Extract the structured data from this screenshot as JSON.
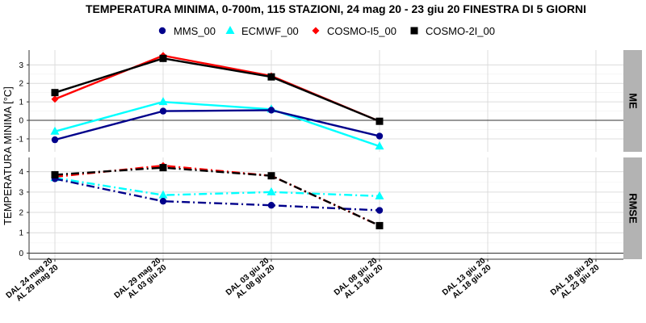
{
  "chart_data": {
    "type": "line",
    "title": "TEMPERATURA MINIMA, 0-700m, 115 STAZIONI, 24 mag 20 - 23 giu 20 FINESTRA DI 5 GIORNI",
    "ylabel": "TEMPERATURA MINIMA [°C]",
    "xlabel": "",
    "legend_position": "top",
    "grid": true,
    "categories": [
      [
        "DAL 24 mag 20",
        "AL 29 mag 20"
      ],
      [
        "DAL 29 mag 20",
        "AL 03 giu 20"
      ],
      [
        "DAL 03 giu 20",
        "AL 08 giu 20"
      ],
      [
        "DAL 08 giu 20",
        "AL 13 giu 20"
      ],
      [
        "DAL 13 giu 20",
        "AL 18 giu 20"
      ],
      [
        "DAL 18 giu 20",
        "AL 23 giu 20"
      ]
    ],
    "series_styles": [
      {
        "name": "MMS_00",
        "color": "#00008B",
        "marker": "circle"
      },
      {
        "name": "ECMWF_00",
        "color": "#00FFFF",
        "marker": "triangle"
      },
      {
        "name": "COSMO-I5_00",
        "color": "#FF0000",
        "marker": "diamond"
      },
      {
        "name": "COSMO-2I_00",
        "color": "#000000",
        "marker": "square"
      }
    ],
    "panels": [
      {
        "strip": "ME",
        "ylim": [
          -1.7,
          3.8
        ],
        "yticks": [
          -1,
          0,
          1,
          2,
          3
        ],
        "line_style": "solid",
        "series": [
          {
            "name": "MMS_00",
            "values": [
              -1.05,
              0.5,
              0.55,
              -0.85
            ]
          },
          {
            "name": "ECMWF_00",
            "values": [
              -0.6,
              1.0,
              0.6,
              -1.4
            ]
          },
          {
            "name": "COSMO-I5_00",
            "values": [
              1.15,
              3.5,
              2.4,
              -0.05
            ]
          },
          {
            "name": "COSMO-2I_00",
            "values": [
              1.5,
              3.35,
              2.35,
              -0.05
            ]
          }
        ]
      },
      {
        "strip": "RMSE",
        "ylim": [
          -0.3,
          4.7
        ],
        "yticks": [
          0,
          1,
          2,
          3,
          4
        ],
        "line_style": "dashdot",
        "series": [
          {
            "name": "MMS_00",
            "values": [
              3.65,
              2.55,
              2.35,
              2.1
            ]
          },
          {
            "name": "ECMWF_00",
            "values": [
              3.7,
              2.85,
              3.0,
              2.8
            ]
          },
          {
            "name": "COSMO-I5_00",
            "values": [
              3.75,
              4.3,
              3.8,
              1.35
            ]
          },
          {
            "name": "COSMO-2I_00",
            "values": [
              3.85,
              4.2,
              3.8,
              1.35
            ]
          }
        ]
      }
    ]
  }
}
